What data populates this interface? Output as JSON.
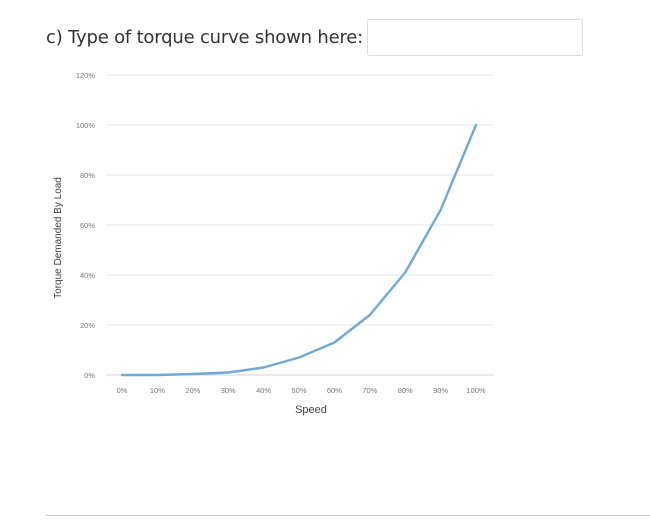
{
  "question": {
    "text": "c) Type of torque curve shown here:",
    "answer_value": "",
    "answer_placeholder": ""
  },
  "chart_data": {
    "type": "line",
    "xlabel": "Speed",
    "ylabel": "Torque Demanded By Load",
    "x": [
      "0%",
      "10%",
      "20%",
      "30%",
      "40%",
      "50%",
      "60%",
      "70%",
      "80%",
      "90%",
      "100%"
    ],
    "y_ticks": [
      "0%",
      "20%",
      "40%",
      "60%",
      "80%",
      "100%",
      "120%"
    ],
    "ylim": [
      0,
      120
    ],
    "grid": true,
    "line_color": "#6fa8dc",
    "series": [
      {
        "values": [
          0,
          0,
          0.4,
          1,
          3,
          7,
          13,
          24,
          41,
          66,
          100
        ]
      }
    ]
  }
}
